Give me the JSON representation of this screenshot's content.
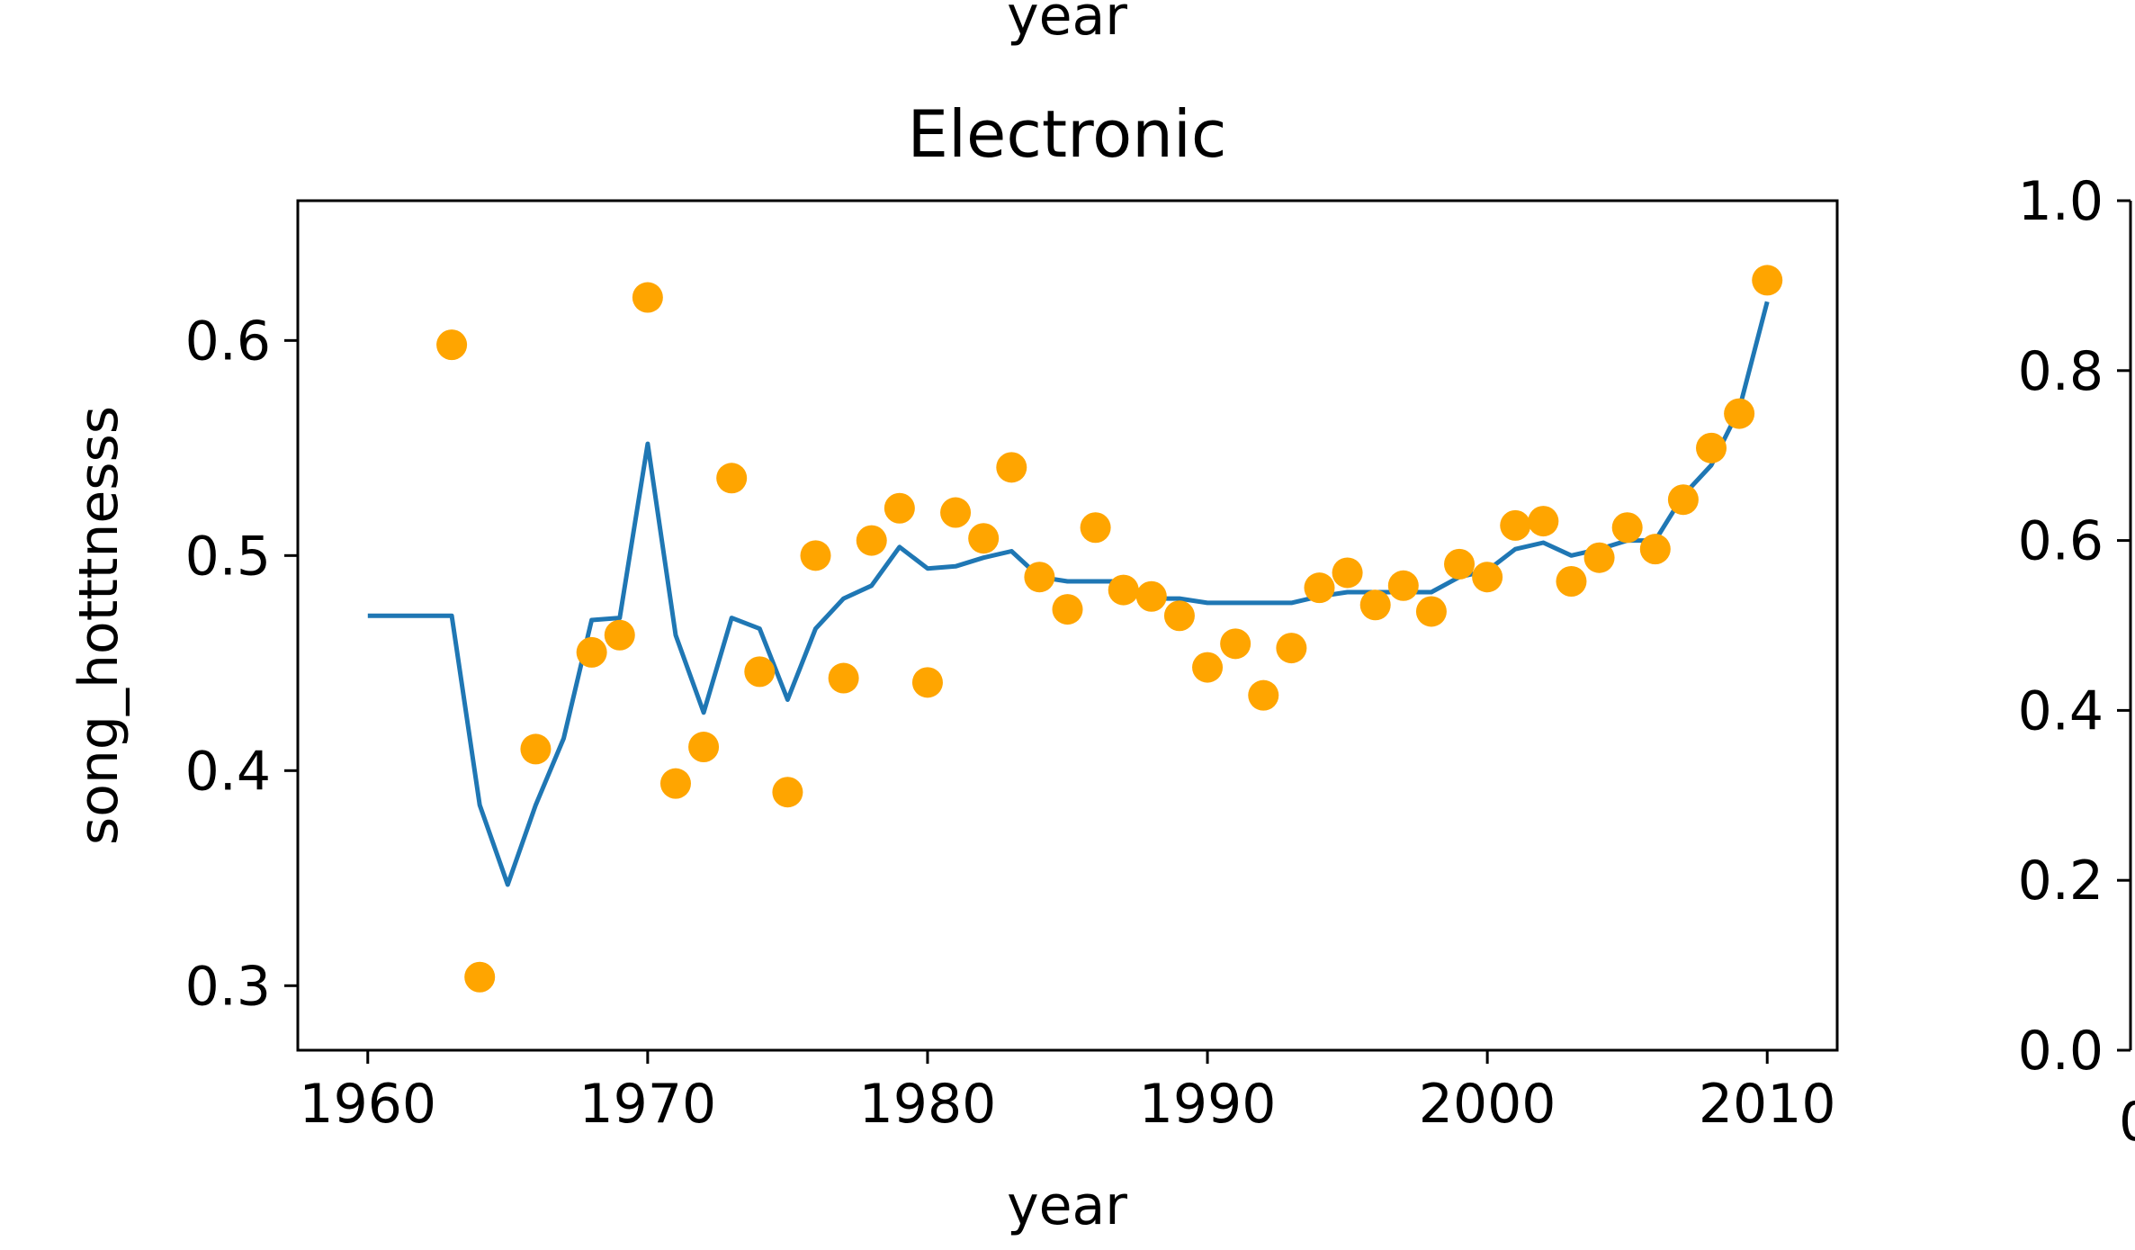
{
  "header": {
    "partial_label": "year"
  },
  "chart_data": [
    {
      "type": "line+scatter",
      "title": "Electronic",
      "xlabel": "year",
      "ylabel": "song_hotttnesss",
      "xlim": [
        1957.5,
        2012.5
      ],
      "ylim": [
        0.27,
        0.665
      ],
      "xticks": [
        1960,
        1970,
        1980,
        1990,
        2000,
        2010
      ],
      "xtick_labels": [
        "1960",
        "1970",
        "1980",
        "1990",
        "2000",
        "2010"
      ],
      "yticks": [
        0.3,
        0.4,
        0.5,
        0.6
      ],
      "ytick_labels": [
        "0.3",
        "0.4",
        "0.5",
        "0.6"
      ],
      "colors": {
        "scatter": "#ffa500",
        "line": "#1f77b4"
      },
      "scatter": {
        "x": [
          1963,
          1964,
          1966,
          1968,
          1969,
          1970,
          1971,
          1972,
          1973,
          1974,
          1975,
          1976,
          1977,
          1978,
          1979,
          1980,
          1981,
          1982,
          1983,
          1984,
          1985,
          1986,
          1987,
          1988,
          1989,
          1990,
          1991,
          1992,
          1993,
          1994,
          1995,
          1996,
          1997,
          1998,
          1999,
          2000,
          2001,
          2002,
          2003,
          2004,
          2005,
          2006,
          2007,
          2008,
          2009,
          2010
        ],
        "y": [
          0.598,
          0.304,
          0.41,
          0.455,
          0.463,
          0.62,
          0.394,
          0.411,
          0.536,
          0.446,
          0.39,
          0.5,
          0.443,
          0.507,
          0.522,
          0.441,
          0.52,
          0.508,
          0.541,
          0.49,
          0.475,
          0.513,
          0.484,
          0.481,
          0.472,
          0.448,
          0.459,
          0.435,
          0.457,
          0.485,
          0.492,
          0.477,
          0.486,
          0.474,
          0.496,
          0.49,
          0.514,
          0.516,
          0.488,
          0.499,
          0.513,
          0.503,
          0.526,
          0.55,
          0.566,
          0.628
        ]
      },
      "line": {
        "x": [
          1960,
          1963,
          1964,
          1965,
          1966,
          1967,
          1968,
          1969,
          1970,
          1971,
          1972,
          1973,
          1974,
          1975,
          1976,
          1977,
          1978,
          1979,
          1980,
          1981,
          1982,
          1983,
          1984,
          1985,
          1986,
          1987,
          1988,
          1989,
          1990,
          1991,
          1992,
          1993,
          1994,
          1995,
          1996,
          1997,
          1998,
          1999,
          2000,
          2001,
          2002,
          2003,
          2004,
          2005,
          2006,
          2007,
          2008,
          2009,
          2010
        ],
        "y": [
          0.472,
          0.472,
          0.384,
          0.347,
          0.384,
          0.415,
          0.47,
          0.471,
          0.552,
          0.463,
          0.427,
          0.471,
          0.466,
          0.433,
          0.466,
          0.48,
          0.486,
          0.504,
          0.494,
          0.495,
          0.499,
          0.502,
          0.49,
          0.488,
          0.488,
          0.488,
          0.48,
          0.48,
          0.478,
          0.478,
          0.478,
          0.478,
          0.481,
          0.483,
          0.483,
          0.483,
          0.483,
          0.49,
          0.493,
          0.503,
          0.506,
          0.5,
          0.503,
          0.507,
          0.507,
          0.528,
          0.542,
          0.568,
          0.618
        ]
      }
    },
    {
      "type": "line",
      "title": "",
      "yticks": [
        0.0,
        0.2,
        0.4,
        0.6,
        0.8,
        1.0
      ],
      "ytick_labels": [
        "0.0",
        "0.2",
        "0.4",
        "0.6",
        "0.8",
        "1.0"
      ],
      "ylim": [
        0.0,
        1.0
      ],
      "partial_xtick_label": "0"
    }
  ]
}
